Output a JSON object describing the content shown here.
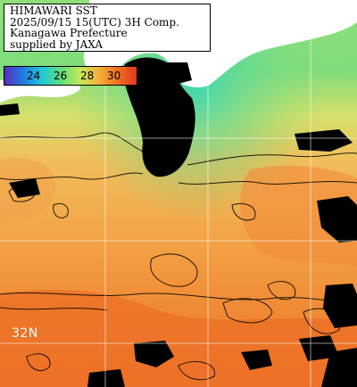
{
  "title": {
    "line1": "HIMAWARI SST",
    "line2": "2025/09/15 15(UTC) 3H Comp.",
    "line3": "Kanagawa Prefecture",
    "line4": "supplied by JAXA"
  },
  "legend": {
    "ticks": [
      "24",
      "26",
      "28",
      "30"
    ],
    "colors": [
      "#5a2bbf",
      "#1f7fe0",
      "#22c9d6",
      "#5ee07a",
      "#c6e85a",
      "#f5b03a",
      "#f07020",
      "#e03a20"
    ]
  },
  "map": {
    "latitude_label": "32N",
    "land_color": "#ffffff",
    "cloud_color": "#000000",
    "grid_color": "#ffffff"
  }
}
